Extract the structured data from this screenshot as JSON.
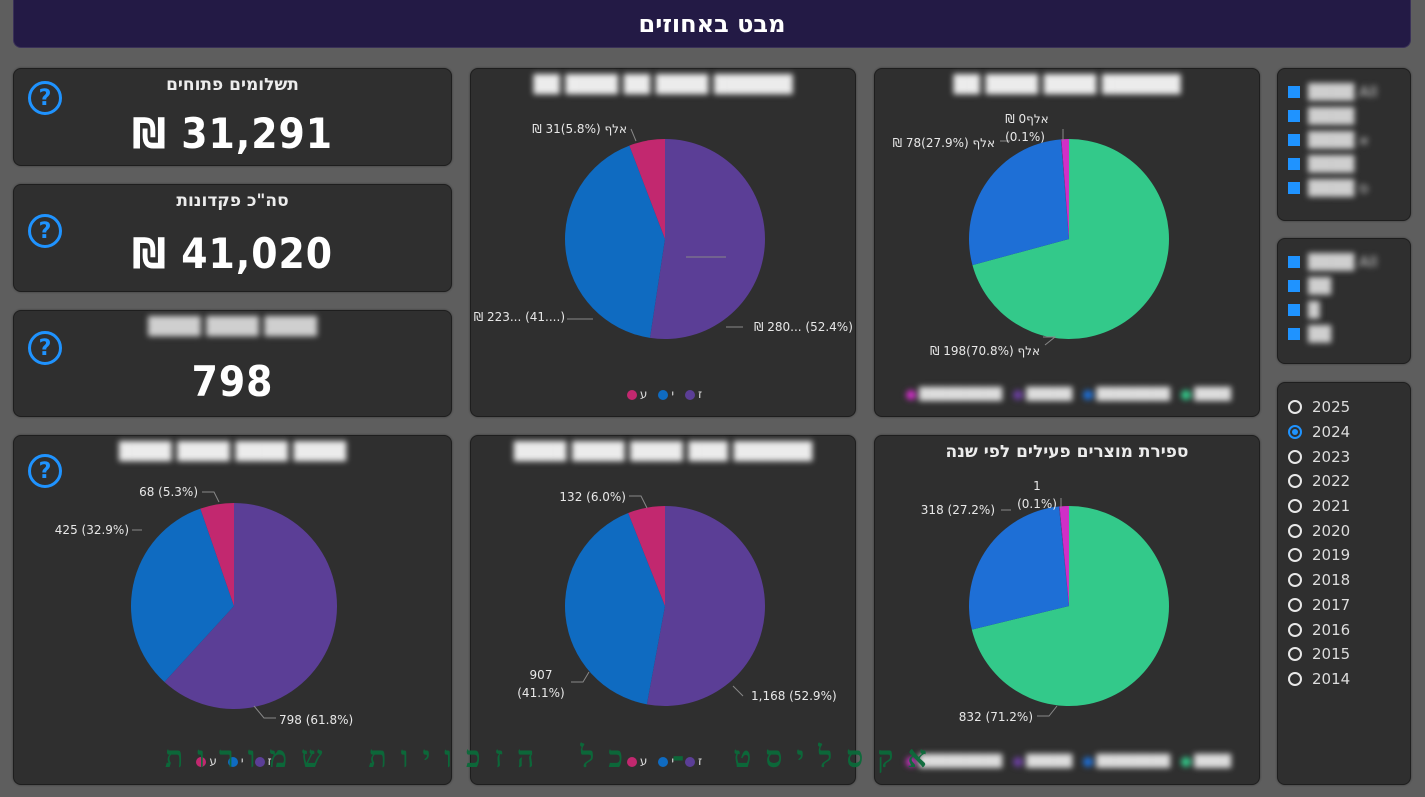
{
  "header": {
    "title": "מבט באחוזים"
  },
  "kpis": [
    {
      "title": "תשלומים פתוחים",
      "value": "31,291 ₪"
    },
    {
      "title": "סה\"כ פקדונות",
      "value": "41,020 ₪"
    },
    {
      "title": "████ ████ ████",
      "value": "798"
    }
  ],
  "help_glyph": "?",
  "charts": {
    "c1": {
      "title": "██████ ████ ██ ████ ██",
      "labels": [
        "‎₪ 280... (52.4%)",
        "‎₪ 223... (41....)",
        "‎₪ 31אלף (5.8%)"
      ],
      "legend": [
        "ז",
        "י",
        "ע"
      ]
    },
    "c2": {
      "title": "██████ ████ ████ ██",
      "labels": [
        "‎₪ 198אלף (70.8%)",
        "‎₪ 78אלף (27.9%)",
        "‎₪ 0אלף",
        "(0.1%)"
      ],
      "legend": [
        "████",
        "████████",
        "█████",
        "█████████"
      ]
    },
    "c3": {
      "title": "████ ████ ████ ████",
      "labels": [
        "798 (61.8%)",
        "425 (32.9%)",
        "68 (5.3%)"
      ],
      "legend": [
        "ז",
        "י",
        "ע"
      ]
    },
    "c4": {
      "title": "██████ ███ ████ ████ ████",
      "labels": [
        "1,168 (52.9%)",
        "907",
        "(41.1%)",
        "132 (6.0%)"
      ],
      "legend": [
        "ז",
        "י",
        "ע"
      ]
    },
    "c5": {
      "title": "ספירת מוצרים פעילים לפי שנה",
      "labels": [
        "832 (71.2%)",
        "318 (27.2%)",
        "1",
        "(0.1%)"
      ],
      "legend": [
        "████",
        "████████",
        "█████",
        "█████████"
      ]
    }
  },
  "chart_data": [
    {
      "type": "pie",
      "values": [
        52.4,
        41.8,
        5.8
      ],
      "colors": [
        "#5b3e96",
        "#0f6bc1",
        "#c2286f"
      ]
    },
    {
      "type": "pie",
      "values": [
        70.8,
        27.9,
        0.1,
        1.2
      ],
      "colors": [
        "#33c98a",
        "#1e6fd6",
        "#6b3fa0",
        "#d02fc7"
      ]
    },
    {
      "type": "pie",
      "values": [
        61.8,
        32.9,
        5.3
      ],
      "colors": [
        "#5b3e96",
        "#0f6bc1",
        "#c2286f"
      ]
    },
    {
      "type": "pie",
      "values": [
        52.9,
        41.1,
        6.0
      ],
      "colors": [
        "#5b3e96",
        "#0f6bc1",
        "#c2286f"
      ]
    },
    {
      "type": "pie",
      "values": [
        71.2,
        27.2,
        0.1,
        1.5
      ],
      "colors": [
        "#33c98a",
        "#1e6fd6",
        "#6b3fa0",
        "#d02fc7"
      ]
    }
  ],
  "slicer1": {
    "items": [
      "████ All",
      "████",
      "████ א",
      "████",
      "████ ס"
    ]
  },
  "slicer2": {
    "items": [
      "████ All",
      "██",
      "█",
      "██"
    ]
  },
  "years": {
    "items": [
      "2025",
      "2024",
      "2023",
      "2022",
      "2021",
      "2020",
      "2019",
      "2018",
      "2017",
      "2016",
      "2015",
      "2014"
    ],
    "selected": "2024"
  },
  "watermark": "אקסליסט - כל הזכויות שמורות"
}
